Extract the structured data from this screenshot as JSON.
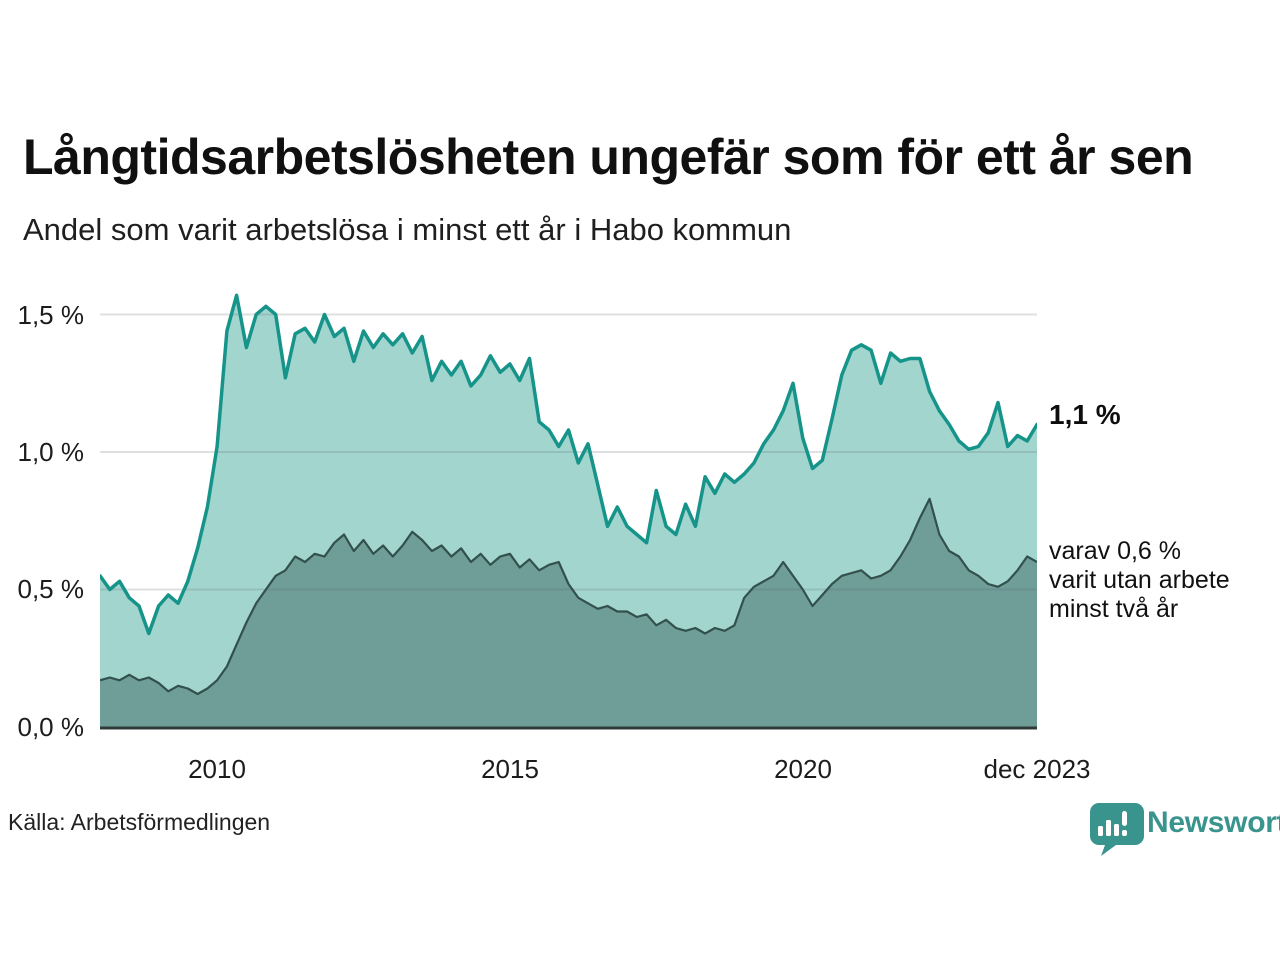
{
  "header": {
    "title": "Långtidsarbetslösheten ungefär som för ett år sen",
    "subtitle": "Andel som varit arbetslösa i minst ett år i Habo kommun"
  },
  "annotations": {
    "latest_total": "1,1 %",
    "secondary_line1": "varav 0,6 %",
    "secondary_line2": "varit utan arbete",
    "secondary_line3": "minst två år"
  },
  "footer": {
    "source": "Källa: Arbetsförmedlingen",
    "brand": "Newsworthy"
  },
  "icons": {
    "brand": "newsworthy-speech-bubble-bar-chart-icon"
  },
  "colors": {
    "line_total": "#17948a",
    "fill_total": "#a3d5cf",
    "line_two_years": "#32504d",
    "fill_two_years": "#6f9d98",
    "gridline": "#5a6470",
    "baseline": "#2f3a3a",
    "brand_teal": "#3a948e"
  },
  "chart_data": {
    "type": "area",
    "title": "Långtidsarbetslösheten ungefär som för ett år sen",
    "subtitle": "Andel som varit arbetslösa i minst ett år i Habo kommun",
    "unit": "%",
    "grid": true,
    "legend_position": "none",
    "x_start": 2008.0,
    "x_step": 0.1666667,
    "xlim": [
      2008,
      2024
    ],
    "ylim": [
      0,
      1.65
    ],
    "y_ticks": [
      {
        "label": "0,0 %",
        "value": 0.0
      },
      {
        "label": "0,5 %",
        "value": 0.5
      },
      {
        "label": "1,0 %",
        "value": 1.0
      },
      {
        "label": "1,5 %",
        "value": 1.5
      }
    ],
    "x_ticks": [
      {
        "label": "2010",
        "year": 2010
      },
      {
        "label": "2015",
        "year": 2015
      },
      {
        "label": "2020",
        "year": 2020
      },
      {
        "label": "dec 2023",
        "year": 2023.92
      }
    ],
    "series": [
      {
        "name": "Andel arbetslösa minst ett år",
        "latest_label": "1,1 %",
        "latest_value": 1.1,
        "values": [
          0.55,
          0.5,
          0.53,
          0.47,
          0.44,
          0.34,
          0.44,
          0.48,
          0.45,
          0.53,
          0.65,
          0.8,
          1.02,
          1.44,
          1.57,
          1.38,
          1.5,
          1.53,
          1.5,
          1.27,
          1.43,
          1.45,
          1.4,
          1.5,
          1.42,
          1.45,
          1.33,
          1.44,
          1.38,
          1.43,
          1.39,
          1.43,
          1.36,
          1.42,
          1.26,
          1.33,
          1.28,
          1.33,
          1.24,
          1.28,
          1.35,
          1.29,
          1.32,
          1.26,
          1.34,
          1.11,
          1.08,
          1.02,
          1.08,
          0.96,
          1.03,
          0.88,
          0.73,
          0.8,
          0.73,
          0.7,
          0.67,
          0.86,
          0.73,
          0.7,
          0.81,
          0.73,
          0.91,
          0.85,
          0.92,
          0.89,
          0.92,
          0.96,
          1.03,
          1.08,
          1.15,
          1.25,
          1.05,
          0.94,
          0.97,
          1.12,
          1.28,
          1.37,
          1.39,
          1.37,
          1.25,
          1.36,
          1.33,
          1.34,
          1.34,
          1.22,
          1.15,
          1.1,
          1.04,
          1.01,
          1.02,
          1.07,
          1.18,
          1.02,
          1.06,
          1.04,
          1.1
        ]
      },
      {
        "name": "varav utan arbete minst två år",
        "latest_label": "0,6 %",
        "latest_value": 0.6,
        "values": [
          0.17,
          0.18,
          0.17,
          0.19,
          0.17,
          0.18,
          0.16,
          0.13,
          0.15,
          0.14,
          0.12,
          0.14,
          0.17,
          0.22,
          0.3,
          0.38,
          0.45,
          0.5,
          0.55,
          0.57,
          0.62,
          0.6,
          0.63,
          0.62,
          0.67,
          0.7,
          0.64,
          0.68,
          0.63,
          0.66,
          0.62,
          0.66,
          0.71,
          0.68,
          0.64,
          0.66,
          0.62,
          0.65,
          0.6,
          0.63,
          0.59,
          0.62,
          0.63,
          0.58,
          0.61,
          0.57,
          0.59,
          0.6,
          0.52,
          0.47,
          0.45,
          0.43,
          0.44,
          0.42,
          0.42,
          0.4,
          0.41,
          0.37,
          0.39,
          0.36,
          0.35,
          0.36,
          0.34,
          0.36,
          0.35,
          0.37,
          0.47,
          0.51,
          0.53,
          0.55,
          0.6,
          0.55,
          0.5,
          0.44,
          0.48,
          0.52,
          0.55,
          0.56,
          0.57,
          0.54,
          0.55,
          0.57,
          0.62,
          0.68,
          0.76,
          0.83,
          0.7,
          0.64,
          0.62,
          0.57,
          0.55,
          0.52,
          0.51,
          0.53,
          0.57,
          0.62,
          0.6
        ]
      }
    ]
  }
}
